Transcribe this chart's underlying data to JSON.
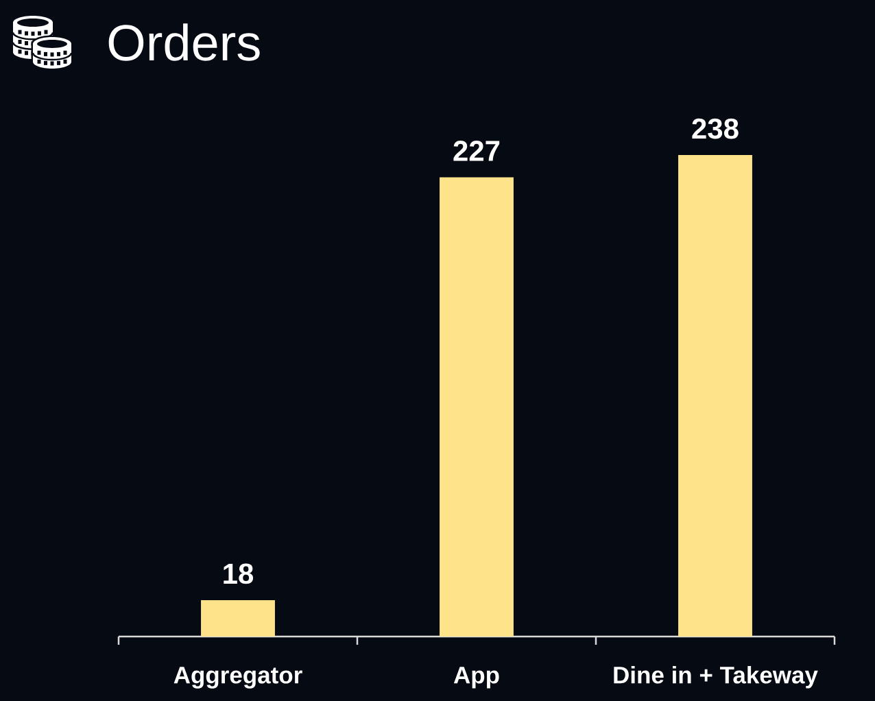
{
  "chart_data": {
    "type": "bar",
    "title": "Orders",
    "categories": [
      "Aggregator",
      "App",
      "Dine in + Takeway"
    ],
    "values": [
      18,
      227,
      238
    ],
    "color": "#ffe38a",
    "data_labels": true
  }
}
